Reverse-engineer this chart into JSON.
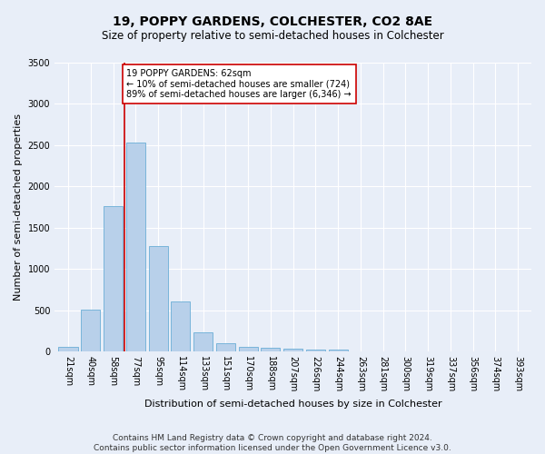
{
  "title1": "19, POPPY GARDENS, COLCHESTER, CO2 8AE",
  "title2": "Size of property relative to semi-detached houses in Colchester",
  "xlabel": "Distribution of semi-detached houses by size in Colchester",
  "ylabel": "Number of semi-detached properties",
  "categories": [
    "21sqm",
    "40sqm",
    "58sqm",
    "77sqm",
    "95sqm",
    "114sqm",
    "133sqm",
    "151sqm",
    "170sqm",
    "188sqm",
    "207sqm",
    "226sqm",
    "244sqm",
    "263sqm",
    "281sqm",
    "300sqm",
    "319sqm",
    "337sqm",
    "356sqm",
    "374sqm",
    "393sqm"
  ],
  "values": [
    65,
    505,
    1760,
    2535,
    1280,
    610,
    235,
    100,
    65,
    50,
    40,
    30,
    25,
    0,
    0,
    0,
    0,
    0,
    0,
    0,
    0
  ],
  "bar_color": "#b8d0ea",
  "bar_edge_color": "#6aaed6",
  "vline_color": "#cc0000",
  "vline_x": 2.5,
  "annotation_text": "19 POPPY GARDENS: 62sqm\n← 10% of semi-detached houses are smaller (724)\n89% of semi-detached houses are larger (6,346) →",
  "annotation_box_color": "#ffffff",
  "annotation_box_edge": "#cc0000",
  "ylim": [
    0,
    3500
  ],
  "yticks": [
    0,
    500,
    1000,
    1500,
    2000,
    2500,
    3000,
    3500
  ],
  "footer1": "Contains HM Land Registry data © Crown copyright and database right 2024.",
  "footer2": "Contains public sector information licensed under the Open Government Licence v3.0.",
  "bg_color": "#e8eef8",
  "plot_bg_color": "#e8eef8",
  "grid_color": "#ffffff",
  "title1_fontsize": 10,
  "title2_fontsize": 8.5,
  "xlabel_fontsize": 8,
  "ylabel_fontsize": 8,
  "tick_fontsize": 7,
  "footer_fontsize": 6.5,
  "ann_fontsize": 7
}
